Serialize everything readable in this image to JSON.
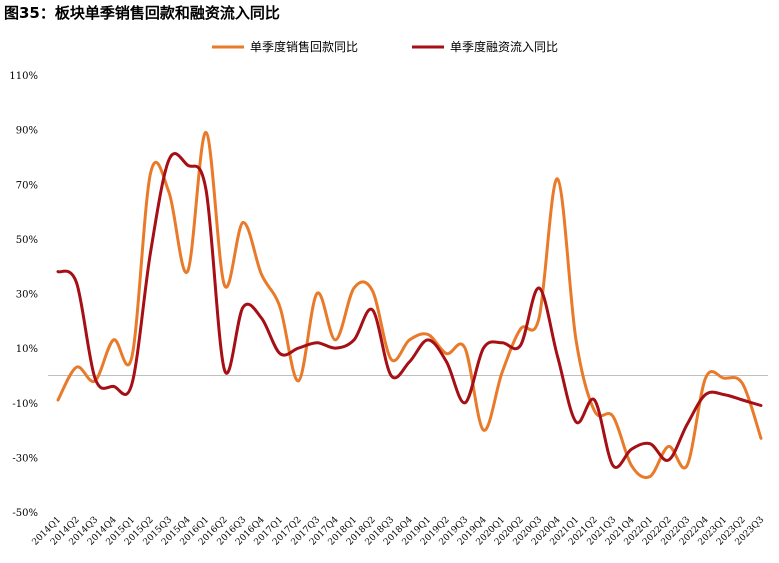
{
  "figure_title": "图35：板块单季销售回款和融资流入同比",
  "colors": {
    "series1": "#E97A2A",
    "series2": "#A50F15",
    "zero_line": "#BFBFBF"
  },
  "chart_data": {
    "type": "line",
    "title": "图35：板块单季销售回款和融资流入同比",
    "xlabel": "",
    "ylabel": "",
    "ylim": [
      -50,
      110
    ],
    "y_ticks": [
      "110%",
      "90%",
      "70%",
      "50%",
      "30%",
      "10%",
      "-10%",
      "-30%",
      "-50%"
    ],
    "y_tick_values": [
      110,
      90,
      70,
      50,
      30,
      10,
      -10,
      -30,
      -50
    ],
    "legend_position": "top-center",
    "grid": false,
    "categories": [
      "2014Q1",
      "2014Q2",
      "2014Q3",
      "2014Q4",
      "2015Q1",
      "2015Q2",
      "2015Q3",
      "2015Q4",
      "2016Q1",
      "2016Q2",
      "2016Q3",
      "2016Q4",
      "2017Q1",
      "2017Q2",
      "2017Q3",
      "2017Q4",
      "2018Q1",
      "2018Q2",
      "2018Q3",
      "2018Q4",
      "2019Q1",
      "2019Q2",
      "2019Q3",
      "2019Q4",
      "2020Q1",
      "2020Q2",
      "2020Q3",
      "2020Q4",
      "2021Q1",
      "2021Q2",
      "2021Q3",
      "2021Q4",
      "2022Q1",
      "2022Q2",
      "2022Q3",
      "2022Q4",
      "2023Q1",
      "2023Q2",
      "2023Q3"
    ],
    "series": [
      {
        "name": "单季度销售回款同比",
        "values": [
          -9,
          3,
          -2,
          13,
          7,
          74,
          67,
          38,
          89,
          33,
          56,
          37,
          25,
          -2,
          30,
          13,
          32,
          31,
          6,
          13,
          15,
          8,
          10,
          -20,
          1,
          17,
          21,
          72,
          13,
          -13,
          -15,
          -33,
          -37,
          -26,
          -33,
          -1,
          -1,
          -3,
          -23
        ]
      },
      {
        "name": "单季度融资流入同比",
        "values": [
          38,
          34,
          -1,
          -4,
          -3,
          45,
          79,
          77,
          68,
          2,
          25,
          21,
          8,
          10,
          12,
          10,
          13,
          24,
          0,
          5,
          13,
          5,
          -10,
          10,
          12,
          11,
          32,
          7,
          -17,
          -9,
          -33,
          -27,
          -25,
          -31,
          -18,
          -7,
          -7,
          -9,
          -11
        ]
      }
    ]
  }
}
